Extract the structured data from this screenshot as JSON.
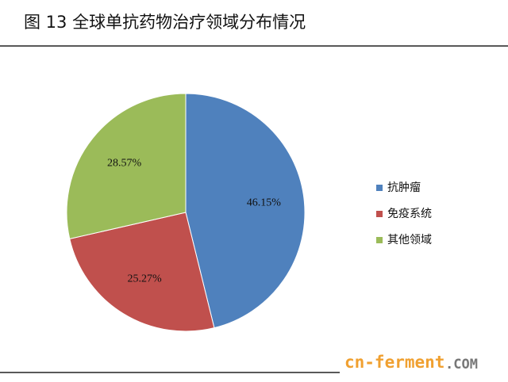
{
  "chart_data": {
    "type": "pie",
    "title": "图 13 全球单抗药物治疗领域分布情况",
    "categories": [
      "抗肿瘤",
      "免疫系统",
      "其他领域"
    ],
    "values": [
      46.15,
      25.27,
      28.57
    ],
    "value_labels": [
      "46.15%",
      "25.27%",
      "28.57%"
    ],
    "colors": [
      "#4f81bd",
      "#c0504d",
      "#9bbb59"
    ],
    "legend": "right"
  },
  "watermark": {
    "site": "cn-ferment",
    "domain": ".COM"
  }
}
